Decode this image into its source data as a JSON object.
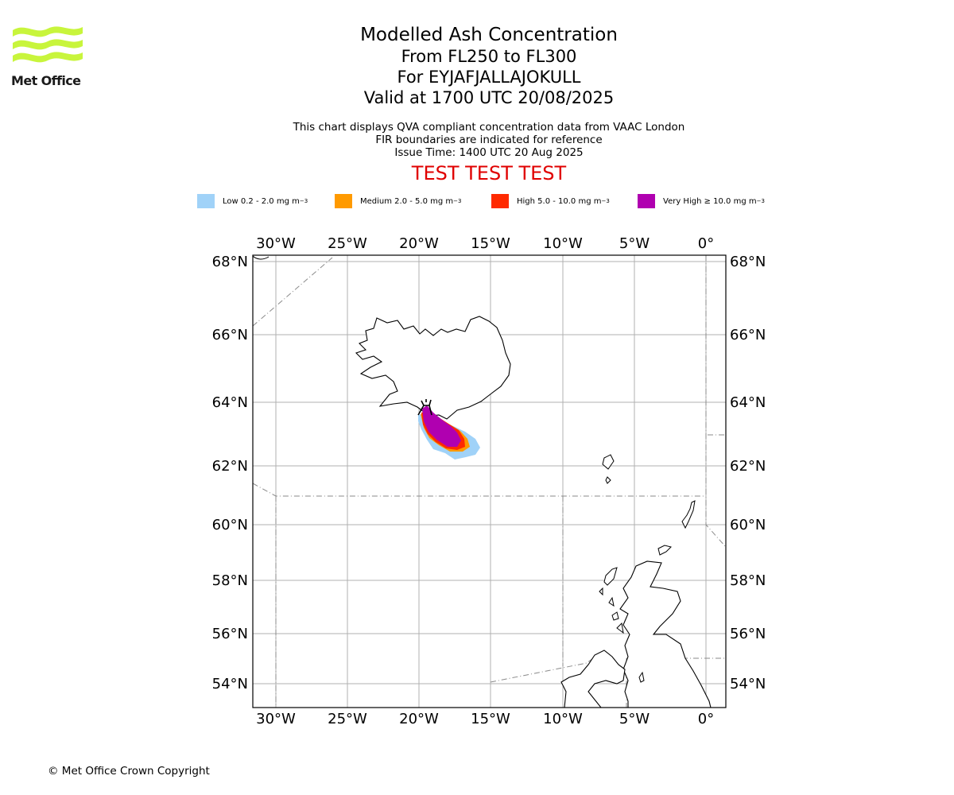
{
  "logo": {
    "text": "Met Office",
    "color": "#c8f53c"
  },
  "title": "Modelled Ash Concentration",
  "subtitle_levels": "From FL250 to FL300",
  "subtitle_volcano": "For EYJAFJALLAJOKULL",
  "subtitle_valid": "Valid at 1700 UTC 20/08/2025",
  "notes": [
    "This chart displays QVA compliant concentration data from VAAC London",
    "FIR boundaries are indicated for reference",
    "Issue Time: 1400 UTC 20 Aug 2025"
  ],
  "test_banner": "TEST TEST TEST",
  "test_color": "#e00000",
  "legend": [
    {
      "label": "Low 0.2 - 2.0 mg m",
      "exp": "−3",
      "color": "#a0d2f8"
    },
    {
      "label": "Medium 2.0 - 5.0 mg m",
      "exp": "−3",
      "color": "#ff9a00"
    },
    {
      "label": "High 5.0 - 10.0 mg m",
      "exp": "−3",
      "color": "#ff2a00"
    },
    {
      "label": "Very High  ≥  10.0 mg m",
      "exp": "−3",
      "color": "#b000b0"
    }
  ],
  "map": {
    "lon_ticks": [
      "30°W",
      "25°W",
      "20°W",
      "15°W",
      "10°W",
      "5°W",
      "0°"
    ],
    "lat_ticks": [
      "68°N",
      "66°N",
      "64°N",
      "62°N",
      "60°N",
      "58°N",
      "56°N",
      "54°N"
    ],
    "grid": true
  },
  "copyright": "© Met Office Crown Copyright"
}
